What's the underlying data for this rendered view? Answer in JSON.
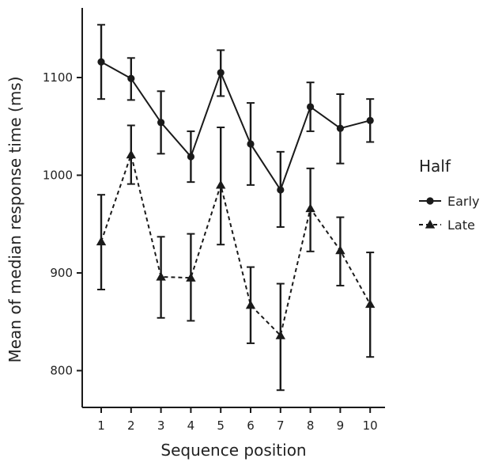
{
  "chart_data": {
    "type": "line",
    "title": "",
    "xlabel": "Sequence position",
    "ylabel": "Mean of median response time (ms)",
    "x": [
      1,
      2,
      3,
      4,
      5,
      6,
      7,
      8,
      9,
      10
    ],
    "x_tick_labels": [
      "1",
      "2",
      "3",
      "4",
      "5",
      "6",
      "7",
      "8",
      "9",
      "10"
    ],
    "y_ticks": [
      800,
      900,
      1000,
      1100
    ],
    "y_tick_labels": [
      "800",
      "900",
      "1000",
      "1100"
    ],
    "xlim": [
      0.5,
      10.5
    ],
    "ylim": [
      760,
      1170
    ],
    "grid": false,
    "legend": {
      "title": "Half",
      "placement": "right"
    },
    "series": [
      {
        "name": "Early",
        "marker": "circle",
        "line_style": "solid",
        "values": [
          1116,
          1099,
          1054,
          1019,
          1105,
          1032,
          985,
          1070,
          1048,
          1056
        ],
        "error_low": [
          1078,
          1077,
          1022,
          993,
          1081,
          990,
          947,
          1045,
          1012,
          1034
        ],
        "error_high": [
          1154,
          1120,
          1086,
          1045,
          1128,
          1074,
          1024,
          1095,
          1083,
          1078
        ]
      },
      {
        "name": "Late",
        "marker": "triangle",
        "line_style": "dashed",
        "values": [
          932,
          1021,
          896,
          895,
          990,
          867,
          836,
          966,
          923,
          868
        ],
        "error_low": [
          883,
          991,
          854,
          851,
          929,
          828,
          780,
          922,
          887,
          814
        ],
        "error_high": [
          980,
          1051,
          937,
          940,
          1049,
          906,
          889,
          1007,
          957,
          921
        ]
      }
    ],
    "colors": {
      "ink": "#1a1a1a",
      "background": "#ffffff"
    }
  }
}
